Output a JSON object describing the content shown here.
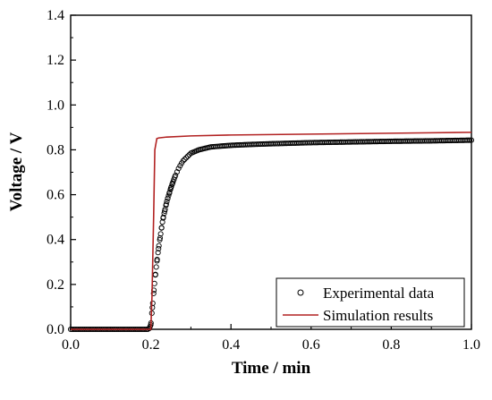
{
  "chart_data": {
    "type": "line",
    "xlabel": "Time / min",
    "ylabel": "Voltage / V",
    "xlim": [
      0.0,
      1.0
    ],
    "ylim": [
      0.0,
      1.4
    ],
    "x_ticks": [
      "0.0",
      "0.2",
      "0.4",
      "0.6",
      "0.8",
      "1.0"
    ],
    "y_ticks": [
      "0.0",
      "0.2",
      "0.4",
      "0.6",
      "0.8",
      "1.0",
      "1.2",
      "1.4"
    ],
    "legend_position": "bottom-right",
    "grid": false,
    "series": [
      {
        "name": "Experimental data",
        "style": "open-circle-markers",
        "color": "#000000",
        "x": [
          0.0,
          0.05,
          0.1,
          0.15,
          0.195,
          0.2,
          0.205,
          0.21,
          0.215,
          0.22,
          0.225,
          0.23,
          0.24,
          0.25,
          0.26,
          0.27,
          0.28,
          0.3,
          0.32,
          0.35,
          0.4,
          0.45,
          0.5,
          0.6,
          0.7,
          0.8,
          0.9,
          1.0
        ],
        "y": [
          0.0,
          0.0,
          0.0,
          0.0,
          0.0,
          0.02,
          0.12,
          0.22,
          0.3,
          0.37,
          0.43,
          0.49,
          0.57,
          0.63,
          0.68,
          0.72,
          0.75,
          0.785,
          0.8,
          0.813,
          0.82,
          0.824,
          0.827,
          0.832,
          0.835,
          0.838,
          0.84,
          0.843
        ]
      },
      {
        "name": "Simulation results",
        "style": "solid-line",
        "color": "#b22222",
        "x": [
          0.0,
          0.1,
          0.2,
          0.203,
          0.207,
          0.21,
          0.215,
          0.22,
          0.24,
          0.3,
          0.4,
          0.5,
          0.6,
          0.7,
          0.8,
          0.9,
          1.0
        ],
        "y": [
          0.0,
          0.0,
          0.0,
          0.15,
          0.5,
          0.8,
          0.85,
          0.853,
          0.857,
          0.862,
          0.866,
          0.868,
          0.87,
          0.872,
          0.874,
          0.876,
          0.878
        ]
      }
    ]
  }
}
